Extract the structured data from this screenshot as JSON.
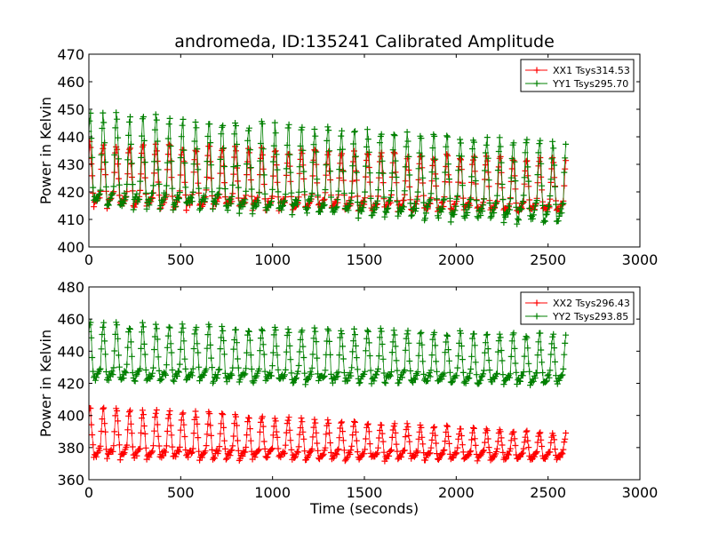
{
  "chart_data": [
    {
      "type": "scatter",
      "title": "andromeda, ID:135241 Calibrated Amplitude",
      "xlabel": "",
      "ylabel": "Power in Kelvin",
      "xlim": [
        0,
        3000
      ],
      "ylim": [
        400,
        470
      ],
      "xticks": [
        "0",
        "500",
        "1000",
        "1500",
        "2000",
        "2500",
        "3000"
      ],
      "yticks": [
        "400",
        "410",
        "420",
        "430",
        "440",
        "450",
        "460",
        "470"
      ],
      "legend_position": "top-right",
      "marker": "+",
      "series": [
        {
          "name": "XX1 Tsys314.53",
          "color": "#ff0000",
          "x_range": [
            0,
            2600
          ],
          "base_start": 419,
          "base_end": 415,
          "peak_start": 438,
          "peak_end": 432,
          "trough_start": 415,
          "trough_end": 413,
          "cycle_period": 72
        },
        {
          "name": "YY1 Tsys295.70",
          "color": "#008000",
          "x_range": [
            0,
            2600
          ],
          "base_start": 420,
          "base_end": 415,
          "peak_start": 449,
          "peak_end": 438,
          "trough_start": 416,
          "trough_end": 409,
          "cycle_period": 72
        }
      ]
    },
    {
      "type": "scatter",
      "title": "",
      "xlabel": "Time (seconds)",
      "ylabel": "Power in Kelvin",
      "xlim": [
        0,
        3000
      ],
      "ylim": [
        360,
        480
      ],
      "xticks": [
        "0",
        "500",
        "1000",
        "1500",
        "2000",
        "2500",
        "3000"
      ],
      "yticks": [
        "360",
        "380",
        "400",
        "420",
        "440",
        "460",
        "480"
      ],
      "legend_position": "top-right",
      "marker": "+",
      "series": [
        {
          "name": "XX2 Tsys296.43",
          "color": "#ff0000",
          "x_range": [
            0,
            2600
          ],
          "base_start": 379,
          "base_end": 377,
          "peak_start": 406,
          "peak_end": 389,
          "trough_start": 374,
          "trough_end": 372,
          "cycle_period": 72
        },
        {
          "name": "YY2 Tsys293.85",
          "color": "#008000",
          "x_range": [
            0,
            2600
          ],
          "base_start": 428,
          "base_end": 425,
          "peak_start": 458,
          "peak_end": 451,
          "trough_start": 422,
          "trough_end": 420,
          "cycle_period": 72
        }
      ]
    }
  ]
}
